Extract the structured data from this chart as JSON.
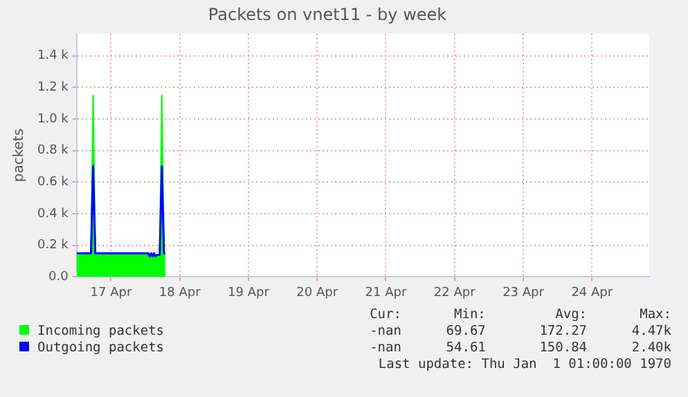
{
  "chart_data": {
    "type": "area",
    "title": "Packets on vnet11 - by week",
    "ylabel": "packets",
    "xlim": [
      "--04-16T12:00",
      "--04-24T20:00"
    ],
    "xticks": [
      {
        "value": "--04-17",
        "label": "17 Apr"
      },
      {
        "value": "--04-18",
        "label": "18 Apr"
      },
      {
        "value": "--04-19",
        "label": "19 Apr"
      },
      {
        "value": "--04-20",
        "label": "20 Apr"
      },
      {
        "value": "--04-21",
        "label": "21 Apr"
      },
      {
        "value": "--04-22",
        "label": "22 Apr"
      },
      {
        "value": "--04-23",
        "label": "23 Apr"
      },
      {
        "value": "--04-24",
        "label": "24 Apr"
      }
    ],
    "ylim": [
      0,
      1540
    ],
    "yticks": [
      {
        "value": 0,
        "label": "0.0"
      },
      {
        "value": 200,
        "label": "0.2 k"
      },
      {
        "value": 400,
        "label": "0.4 k"
      },
      {
        "value": 600,
        "label": "0.6 k"
      },
      {
        "value": 800,
        "label": "0.8 k"
      },
      {
        "value": 1000,
        "label": "1.0 k"
      },
      {
        "value": 1200,
        "label": "1.2 k"
      },
      {
        "value": 1400,
        "label": "1.4 k"
      }
    ],
    "grid": true,
    "legend": "bottom",
    "series": [
      {
        "name": "Incoming packets",
        "color": "#00ff00",
        "x": [
          "--04-16T12:00",
          "--04-16T17:00",
          "--04-16T17:45",
          "--04-16T18:30",
          "--04-17T17:00",
          "--04-17T17:45",
          "--04-17T18:30",
          "--04-17T19:00"
        ],
        "values": [
          140,
          140,
          1150,
          140,
          140,
          1150,
          140,
          140
        ]
      },
      {
        "name": "Outgoing packets",
        "type": "line",
        "color": "#0000ff",
        "x": [
          "--04-16T12:00",
          "--04-16T17:00",
          "--04-16T17:45",
          "--04-16T18:30",
          "--04-17T13:00",
          "--04-17T13:30",
          "--04-17T14:00",
          "--04-17T14:30",
          "--04-17T15:00",
          "--04-17T15:30",
          "--04-17T16:00",
          "--04-17T17:00",
          "--04-17T17:45",
          "--04-17T18:30",
          "--04-17T19:00"
        ],
        "values": [
          150,
          150,
          700,
          150,
          150,
          130,
          150,
          130,
          150,
          130,
          140,
          140,
          700,
          150,
          150
        ]
      }
    ],
    "annotations": [
      "Cur:",
      "Min:",
      "Avg:",
      "Max:",
      "-nan",
      "69.67",
      "172.27",
      "4.47k",
      "-nan",
      "54.61",
      "150.84",
      "2.40k",
      "Last update: Thu Jan  1 01:00:00 1970"
    ]
  }
}
